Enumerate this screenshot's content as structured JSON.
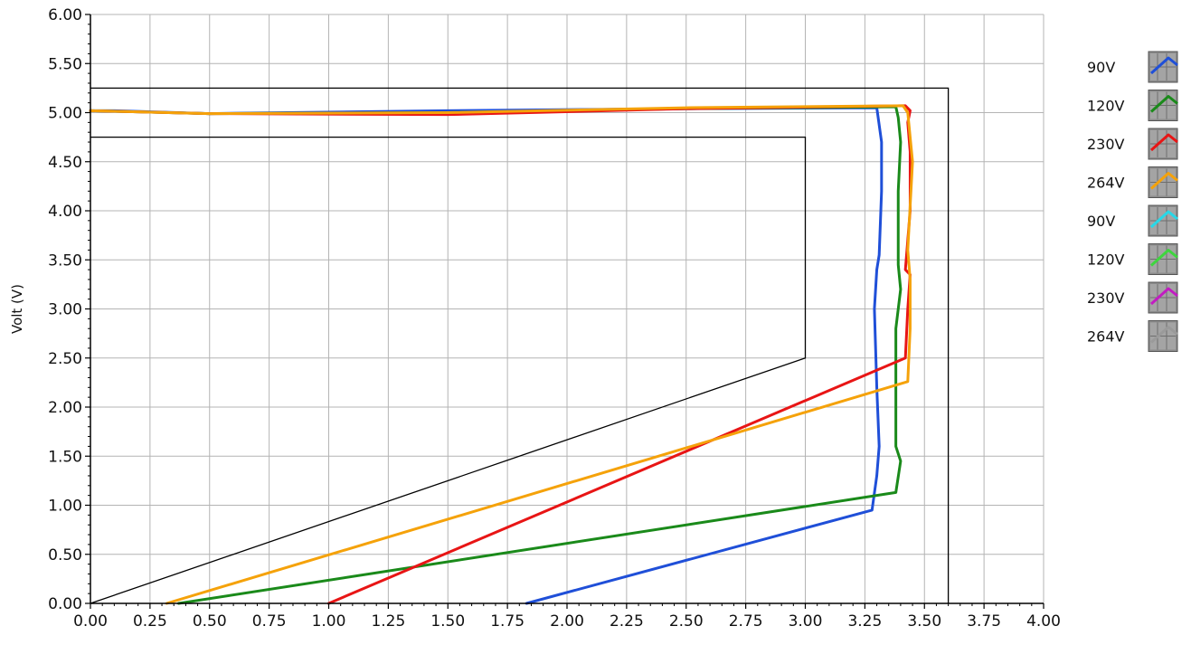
{
  "chart_data": {
    "type": "line",
    "title": "",
    "xlabel": "",
    "ylabel": "Volt (V)",
    "xlim": [
      0,
      4
    ],
    "ylim": [
      0,
      6
    ],
    "x_ticks": [
      "0.00",
      "0.25",
      "0.50",
      "0.75",
      "1.00",
      "1.25",
      "1.50",
      "1.75",
      "2.00",
      "2.25",
      "2.50",
      "2.75",
      "3.00",
      "3.25",
      "3.50",
      "3.75",
      "4.00"
    ],
    "y_ticks": [
      "0.00",
      "0.50",
      "1.00",
      "1.50",
      "2.00",
      "2.50",
      "3.00",
      "3.50",
      "4.00",
      "4.50",
      "5.00",
      "5.50",
      "6.00"
    ],
    "grid": true,
    "legend_position": "right",
    "limit_lines": [
      {
        "color": "#000000",
        "x": [
          0,
          3.0,
          3.0,
          0
        ],
        "y": [
          0,
          2.5,
          4.75,
          4.75
        ]
      },
      {
        "color": "#000000",
        "x": [
          3.6,
          3.6,
          0
        ],
        "y": [
          0,
          5.25,
          5.25
        ]
      }
    ],
    "series": [
      {
        "name": "90V",
        "color": "#1f4fd8",
        "x": [
          1.83,
          3.28,
          3.3,
          3.31,
          3.3,
          3.29,
          3.3,
          3.31,
          3.32,
          3.32,
          3.3,
          2.5,
          1.5,
          0.5,
          0.1,
          0.0
        ],
        "y": [
          0.0,
          0.95,
          1.3,
          1.6,
          2.2,
          3.0,
          3.4,
          3.55,
          4.2,
          4.7,
          5.05,
          5.04,
          5.02,
          4.99,
          5.02,
          5.02
        ]
      },
      {
        "name": "120V",
        "color": "#1a8a1a",
        "x": [
          0.37,
          3.38,
          3.4,
          3.38,
          3.38,
          3.38,
          3.4,
          3.39,
          3.39,
          3.4,
          3.39,
          3.38,
          2.5,
          1.5,
          0.5,
          0.0
        ],
        "y": [
          0.0,
          1.13,
          1.45,
          1.6,
          2.2,
          2.8,
          3.2,
          3.45,
          4.2,
          4.7,
          4.95,
          5.06,
          5.04,
          5.0,
          4.99,
          5.02
        ]
      },
      {
        "name": "230V",
        "color": "#e81515",
        "x": [
          1.0,
          3.42,
          3.43,
          3.44,
          3.42,
          3.44,
          3.44,
          3.43,
          3.44,
          3.42,
          2.5,
          1.5,
          0.5,
          0.0
        ],
        "y": [
          0.0,
          2.5,
          3.0,
          3.35,
          3.4,
          4.0,
          4.6,
          4.9,
          5.02,
          5.07,
          5.04,
          4.98,
          4.99,
          5.02
        ]
      },
      {
        "name": "264V",
        "color": "#f5a20a",
        "x": [
          0.32,
          3.43,
          3.44,
          3.44,
          3.43,
          3.45,
          3.43,
          3.41,
          2.5,
          1.5,
          0.5,
          0.0
        ],
        "y": [
          0.0,
          2.26,
          2.8,
          3.3,
          3.6,
          4.5,
          5.0,
          5.07,
          5.05,
          5.0,
          4.99,
          5.02
        ]
      },
      {
        "name": "90V",
        "color": "#27d8e8",
        "x": [],
        "y": []
      },
      {
        "name": "120V",
        "color": "#3ed63e",
        "x": [],
        "y": []
      },
      {
        "name": "230V",
        "color": "#c21cc2",
        "x": [],
        "y": []
      },
      {
        "name": "264V",
        "color": "#9a9a9a",
        "x": [],
        "y": []
      }
    ]
  }
}
